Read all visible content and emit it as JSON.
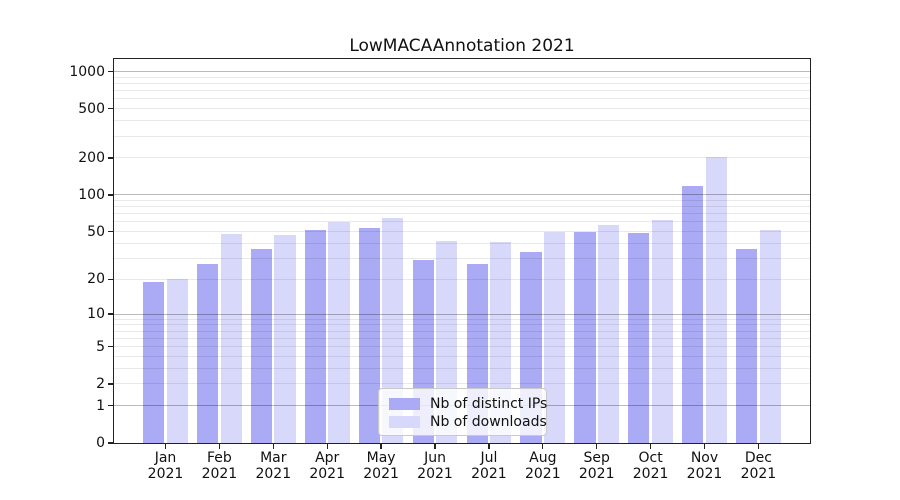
{
  "title": "LowMACAAnnotation 2021",
  "legend": {
    "items": [
      {
        "label": "Nb of distinct IPs",
        "color": "#aaaaf5"
      },
      {
        "label": "Nb of downloads",
        "color": "#d8d8fa"
      }
    ]
  },
  "chart_data": {
    "type": "bar",
    "title": "LowMACAAnnotation 2021",
    "categories": [
      "Jan",
      "Feb",
      "Mar",
      "Apr",
      "May",
      "Jun",
      "Jul",
      "Aug",
      "Sep",
      "Oct",
      "Nov",
      "Dec"
    ],
    "year": "2021",
    "series": [
      {
        "name": "Nb of distinct IPs",
        "color": "#aaaaf5",
        "values": [
          19,
          27,
          36,
          52,
          54,
          29,
          27,
          34,
          50,
          49,
          118,
          36
        ]
      },
      {
        "name": "Nb of downloads",
        "color": "#d8d8fa",
        "values": [
          20,
          48,
          47,
          60,
          65,
          42,
          41,
          50,
          57,
          62,
          205,
          52
        ]
      }
    ],
    "y_axis": {
      "scale": "log10(1+x)",
      "tick_values": [
        0,
        1,
        2,
        5,
        10,
        20,
        50,
        100,
        200,
        500,
        1000
      ],
      "tick_labels": [
        "0",
        "1",
        "2",
        "5",
        "10",
        "20",
        "50",
        "100",
        "200",
        "500",
        "1000"
      ],
      "major_grid_values": [
        1,
        10,
        100,
        1000
      ],
      "minor_grid_values": [
        2,
        3,
        4,
        5,
        6,
        7,
        8,
        9,
        20,
        30,
        40,
        50,
        60,
        70,
        80,
        90,
        200,
        300,
        400,
        500,
        600,
        700,
        800,
        900
      ],
      "top_value": 1265,
      "grid": true
    },
    "xlabel": "",
    "ylabel": "",
    "legend_position": "lower center"
  },
  "colors": {
    "background": "#ffffff",
    "spine": "#222222",
    "ips_bar": "#aaaaf5",
    "downloads_bar": "#d8d8fa"
  }
}
